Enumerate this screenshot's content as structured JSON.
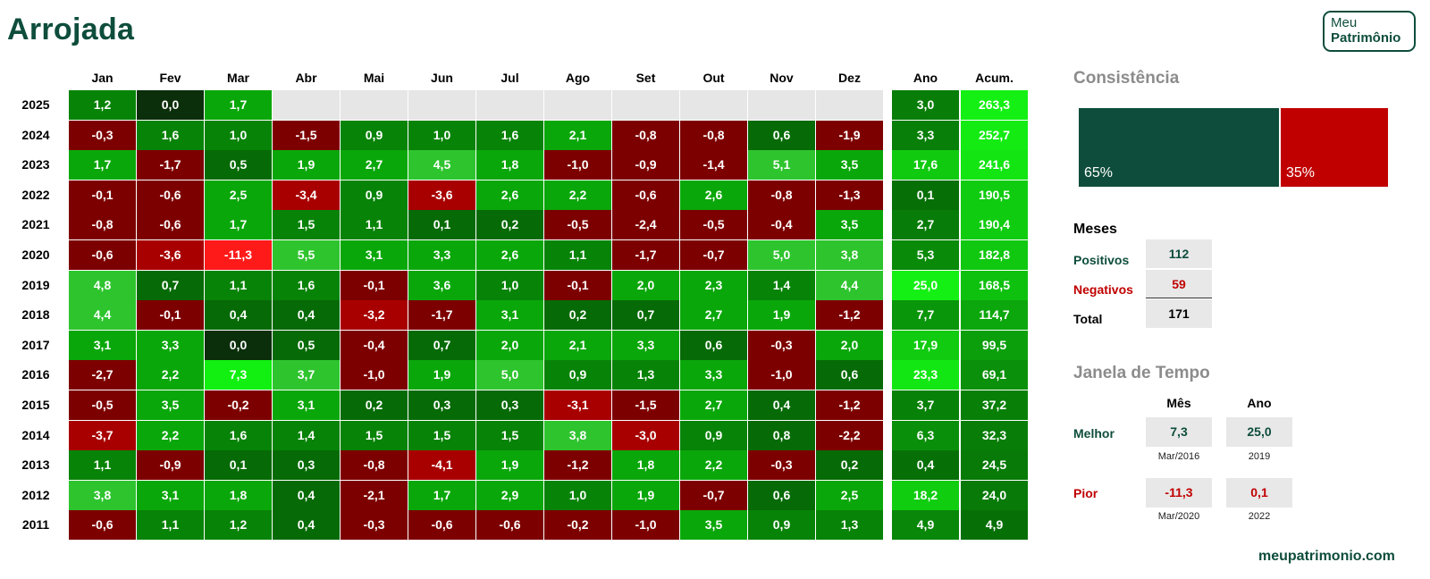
{
  "title": "Arrojada",
  "logo": {
    "line1": "Meu",
    "line2": "Patrimônio"
  },
  "footer": "meupatrimonio.com",
  "colors": {
    "brand": "#0e4d3c",
    "negative_label": "#c00000",
    "consistency_positive": "#0e4d3c",
    "consistency_negative": "#c00000",
    "empty_cell": "#e6e6e6"
  },
  "chart_data": {
    "type": "heatmap",
    "title": "Arrojada",
    "months": [
      "Jan",
      "Fev",
      "Mar",
      "Abr",
      "Mai",
      "Jun",
      "Jul",
      "Ago",
      "Set",
      "Out",
      "Nov",
      "Dez"
    ],
    "year_header": "Ano",
    "accum_header": "Acum.",
    "rows": [
      {
        "year": "2025",
        "monthly": [
          "1,2",
          "0,0",
          "1,7",
          null,
          null,
          null,
          null,
          null,
          null,
          null,
          null,
          null
        ],
        "ano": "3,0",
        "acum": "263,3"
      },
      {
        "year": "2024",
        "monthly": [
          "-0,3",
          "1,6",
          "1,0",
          "-1,5",
          "0,9",
          "1,0",
          "1,6",
          "2,1",
          "-0,8",
          "-0,8",
          "0,6",
          "-1,9"
        ],
        "ano": "3,3",
        "acum": "252,7"
      },
      {
        "year": "2023",
        "monthly": [
          "1,7",
          "-1,7",
          "0,5",
          "1,9",
          "2,7",
          "4,5",
          "1,8",
          "-1,0",
          "-0,9",
          "-1,4",
          "5,1",
          "3,5"
        ],
        "ano": "17,6",
        "acum": "241,6"
      },
      {
        "year": "2022",
        "monthly": [
          "-0,1",
          "-0,6",
          "2,5",
          "-3,4",
          "0,9",
          "-3,6",
          "2,6",
          "2,2",
          "-0,6",
          "2,6",
          "-0,8",
          "-1,3"
        ],
        "ano": "0,1",
        "acum": "190,5"
      },
      {
        "year": "2021",
        "monthly": [
          "-0,8",
          "-0,6",
          "1,7",
          "1,5",
          "1,1",
          "0,1",
          "0,2",
          "-0,5",
          "-2,4",
          "-0,5",
          "-0,4",
          "3,5"
        ],
        "ano": "2,7",
        "acum": "190,4"
      },
      {
        "year": "2020",
        "monthly": [
          "-0,6",
          "-3,6",
          "-11,3",
          "5,5",
          "3,1",
          "3,3",
          "2,6",
          "1,1",
          "-1,7",
          "-0,7",
          "5,0",
          "3,8"
        ],
        "ano": "5,3",
        "acum": "182,8"
      },
      {
        "year": "2019",
        "monthly": [
          "4,8",
          "0,7",
          "1,1",
          "1,6",
          "-0,1",
          "3,6",
          "1,0",
          "-0,1",
          "2,0",
          "2,3",
          "1,4",
          "4,4"
        ],
        "ano": "25,0",
        "acum": "168,5"
      },
      {
        "year": "2018",
        "monthly": [
          "4,4",
          "-0,1",
          "0,4",
          "0,4",
          "-3,2",
          "-1,7",
          "3,1",
          "0,2",
          "0,7",
          "2,7",
          "1,9",
          "-1,2"
        ],
        "ano": "7,7",
        "acum": "114,7"
      },
      {
        "year": "2017",
        "monthly": [
          "3,1",
          "3,3",
          "0,0",
          "0,5",
          "-0,4",
          "0,7",
          "2,0",
          "2,1",
          "3,3",
          "0,6",
          "-0,3",
          "2,0"
        ],
        "ano": "17,9",
        "acum": "99,5"
      },
      {
        "year": "2016",
        "monthly": [
          "-2,7",
          "2,2",
          "7,3",
          "3,7",
          "-1,0",
          "1,9",
          "5,0",
          "0,9",
          "1,3",
          "3,3",
          "-1,0",
          "0,6"
        ],
        "ano": "23,3",
        "acum": "69,1"
      },
      {
        "year": "2015",
        "monthly": [
          "-0,5",
          "3,5",
          "-0,2",
          "3,1",
          "0,2",
          "0,3",
          "0,3",
          "-3,1",
          "-1,5",
          "2,7",
          "0,4",
          "-1,2"
        ],
        "ano": "3,7",
        "acum": "37,2"
      },
      {
        "year": "2014",
        "monthly": [
          "-3,7",
          "2,2",
          "1,6",
          "1,4",
          "1,5",
          "1,5",
          "1,5",
          "3,8",
          "-3,0",
          "0,9",
          "0,8",
          "-2,2"
        ],
        "ano": "6,3",
        "acum": "32,3"
      },
      {
        "year": "2013",
        "monthly": [
          "1,1",
          "-0,9",
          "0,1",
          "0,3",
          "-0,8",
          "-4,1",
          "1,9",
          "-1,2",
          "1,8",
          "2,2",
          "-0,3",
          "0,2"
        ],
        "ano": "0,4",
        "acum": "24,5"
      },
      {
        "year": "2012",
        "monthly": [
          "3,8",
          "3,1",
          "1,8",
          "0,4",
          "-2,1",
          "1,7",
          "2,9",
          "1,0",
          "1,9",
          "-0,7",
          "0,6",
          "2,5"
        ],
        "ano": "18,2",
        "acum": "24,0"
      },
      {
        "year": "2011",
        "monthly": [
          "-0,6",
          "1,1",
          "1,2",
          "0,4",
          "-0,3",
          "-0,6",
          "-0,6",
          "-0,2",
          "-1,0",
          "3,5",
          "0,9",
          "1,3"
        ],
        "ano": "4,9",
        "acum": "4,9"
      }
    ]
  },
  "consistencia": {
    "title": "Consistência",
    "positive_pct": 65,
    "negative_pct": 35,
    "positive_label": "65%",
    "negative_label": "35%"
  },
  "meses": {
    "title": "Meses",
    "positivos_label": "Positivos",
    "positivos_value": "112",
    "negativos_label": "Negativos",
    "negativos_value": "59",
    "total_label": "Total",
    "total_value": "171"
  },
  "janela": {
    "title": "Janela de Tempo",
    "mes_header": "Mês",
    "ano_header": "Ano",
    "melhor_label": "Melhor",
    "melhor_mes": "7,3",
    "melhor_mes_date": "Mar/2016",
    "melhor_ano": "25,0",
    "melhor_ano_date": "2019",
    "pior_label": "Pior",
    "pior_mes": "-11,3",
    "pior_mes_date": "Mar/2020",
    "pior_ano": "0,1",
    "pior_ano_date": "2022"
  }
}
